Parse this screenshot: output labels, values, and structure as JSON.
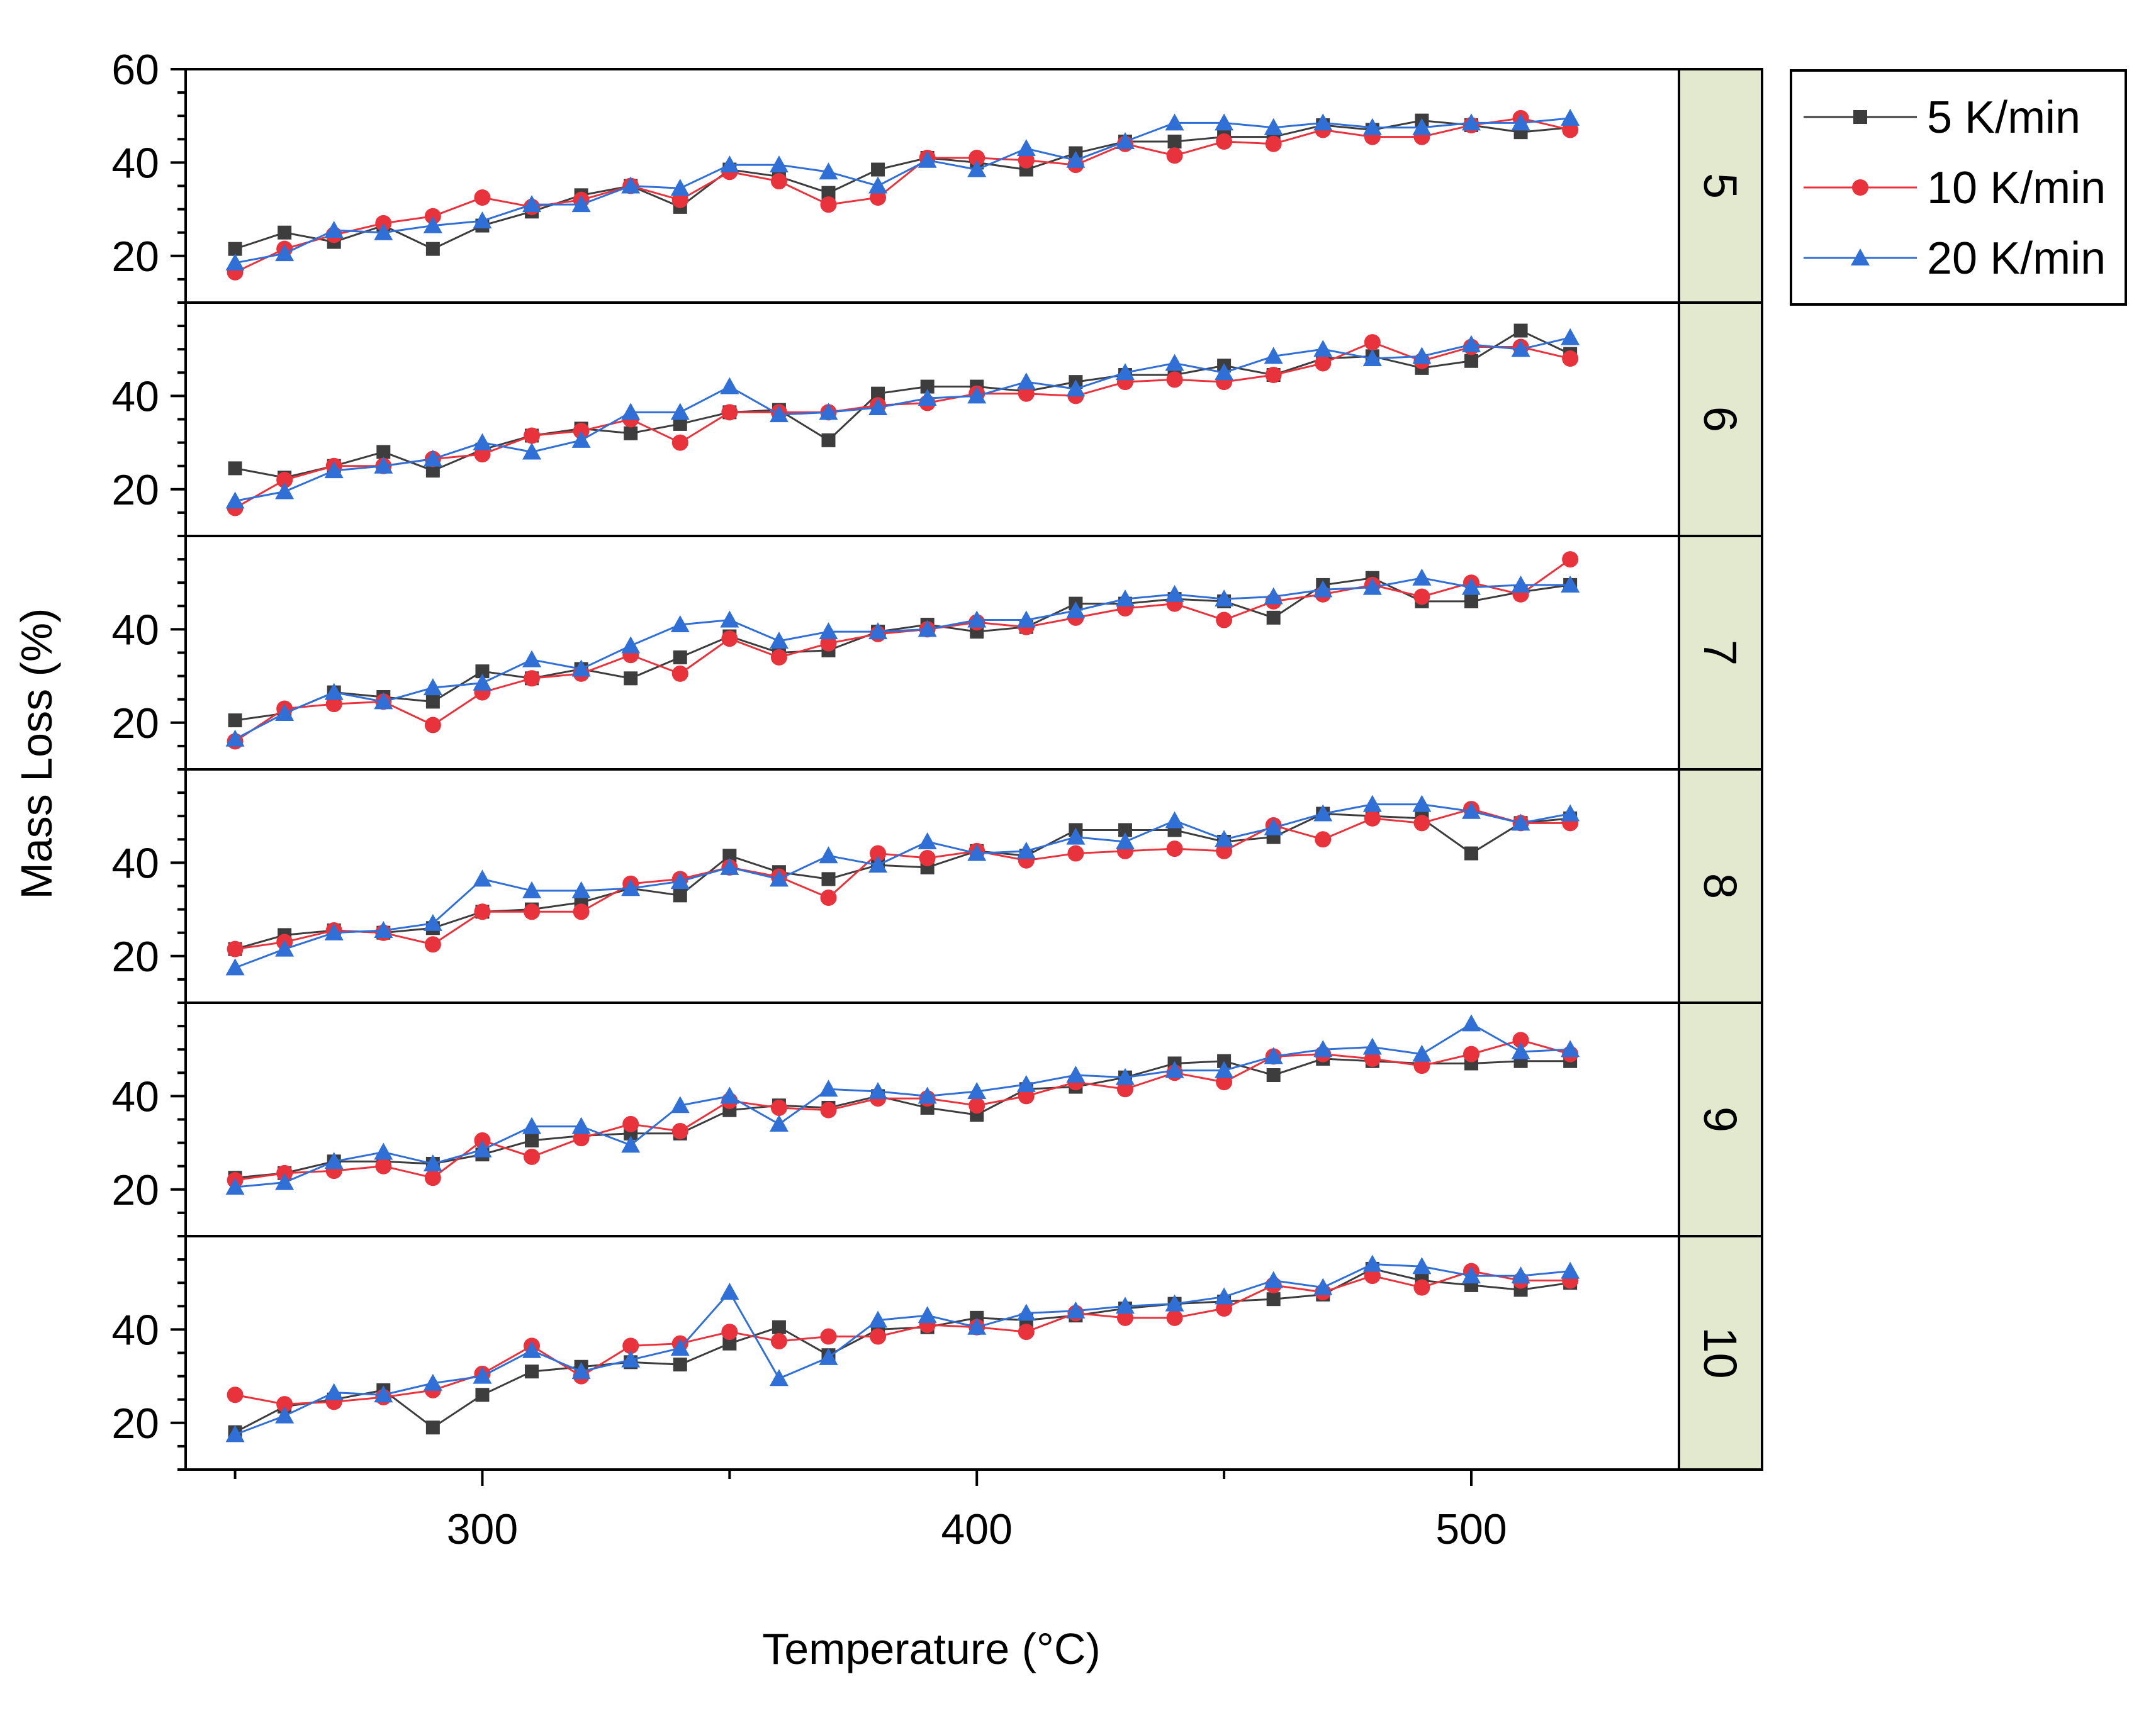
{
  "colors": {
    "series_5": "#3d3d3d",
    "series_10": "#e8333d",
    "series_20": "#2f6fd6",
    "strip_fill": "#e2e9cf",
    "axis": "#000000"
  },
  "chart_data": {
    "type": "line",
    "layout": "stacked panels sharing x-axis",
    "xlabel": "Temperature (°C)",
    "ylabel": "Mass Loss (%)",
    "x_ticks": [
      300,
      400,
      500
    ],
    "x_range": [
      240,
      542
    ],
    "y_range": [
      10,
      60
    ],
    "y_ticks_first_panel": [
      20,
      40,
      60
    ],
    "y_ticks_other_panels": [
      20,
      40
    ],
    "legend": [
      {
        "label": "5 K/min",
        "marker": "square"
      },
      {
        "label": "10 K/min",
        "marker": "circle"
      },
      {
        "label": "20 K/min",
        "marker": "triangle"
      }
    ],
    "x": [
      250,
      260,
      270,
      280,
      290,
      300,
      310,
      320,
      330,
      340,
      350,
      360,
      370,
      380,
      390,
      400,
      410,
      420,
      430,
      440,
      450,
      460,
      470,
      480,
      490,
      500,
      510,
      520
    ],
    "panels": [
      {
        "label": "5",
        "series": [
          {
            "name": "5 K/min",
            "values": [
              21.5,
              25,
              23,
              26.5,
              21.5,
              26.5,
              29.5,
              33,
              35,
              30.5,
              38.5,
              37,
              33.5,
              38.5,
              41,
              40,
              38.5,
              42,
              44.5,
              44.5,
              45.5,
              45.5,
              48,
              47,
              49,
              48,
              46.5,
              47.5
            ]
          },
          {
            "name": "10 K/min",
            "values": [
              16.5,
              21.5,
              24.5,
              27,
              28.5,
              32.5,
              30.5,
              32,
              35,
              32,
              38,
              36,
              31,
              32.5,
              41,
              41,
              40.5,
              39.5,
              44,
              41.5,
              44.5,
              44,
              47,
              45.5,
              45.5,
              48,
              49.5,
              47
            ]
          },
          {
            "name": "20 K/min",
            "values": [
              18.5,
              20.5,
              25.5,
              25,
              26.5,
              27.5,
              31,
              31,
              35,
              34.5,
              39.5,
              39.5,
              38,
              35,
              40.5,
              38.5,
              43,
              40.5,
              44.5,
              48.5,
              48.5,
              47.5,
              48.5,
              47.5,
              47.5,
              48.5,
              48.5,
              49.5
            ]
          }
        ]
      },
      {
        "label": "6",
        "series": [
          {
            "name": "5 K/min",
            "values": [
              24.5,
              22.5,
              25,
              28,
              24,
              28.5,
              31.5,
              33,
              32,
              34,
              36.5,
              37,
              30.5,
              40.5,
              42,
              42,
              41,
              43,
              44.5,
              44.5,
              46.5,
              44.5,
              48,
              48.5,
              46,
              47.5,
              54,
              49
            ]
          },
          {
            "name": "10 K/min",
            "values": [
              16,
              22,
              25,
              25,
              26.5,
              27.5,
              31.5,
              32.5,
              35,
              30,
              36.5,
              36.5,
              36.5,
              38,
              38.5,
              40.5,
              40.5,
              40,
              43,
              43.5,
              43,
              44.5,
              47,
              51.5,
              47.5,
              50.5,
              50.5,
              48
            ]
          },
          {
            "name": "20 K/min",
            "values": [
              17.5,
              19.5,
              24,
              25,
              26.5,
              30,
              28,
              30.5,
              36.5,
              36.5,
              42,
              36,
              36.5,
              37.5,
              39.5,
              40,
              43,
              41.5,
              45,
              47,
              45,
              48.5,
              50,
              48,
              48.5,
              51,
              50,
              52.5
            ]
          }
        ]
      },
      {
        "label": "7",
        "series": [
          {
            "name": "5 K/min",
            "values": [
              20.5,
              22,
              26.5,
              25.5,
              24.5,
              31,
              29.5,
              31.5,
              29.5,
              34,
              38.5,
              35,
              35.5,
              39.5,
              41,
              39.5,
              40.5,
              45.5,
              45.5,
              46.5,
              46,
              42.5,
              49.5,
              51,
              46,
              46,
              48,
              49.5
            ]
          },
          {
            "name": "10 K/min",
            "values": [
              16,
              23,
              24,
              24.5,
              19.5,
              26.5,
              29.5,
              30.5,
              34.5,
              30.5,
              38,
              34,
              37,
              39,
              40,
              41.5,
              40.5,
              42.5,
              44.5,
              45.5,
              42,
              46,
              47.5,
              49.5,
              47,
              50,
              47.5,
              55
            ]
          },
          {
            "name": "20 K/min",
            "values": [
              16.5,
              22,
              26.5,
              24.5,
              27.5,
              28.5,
              33.5,
              31.5,
              36.5,
              41,
              42,
              37.5,
              39.5,
              39.5,
              40,
              42,
              42,
              44,
              46.5,
              47.5,
              46.5,
              47,
              48.5,
              49,
              51,
              49,
              49.5,
              49.5
            ]
          }
        ]
      },
      {
        "label": "8",
        "series": [
          {
            "name": "5 K/min",
            "values": [
              21.5,
              24.5,
              25.5,
              25,
              26,
              29.5,
              30,
              31.5,
              34.5,
              33,
              41.5,
              38,
              36.5,
              39.5,
              39,
              42.5,
              41.5,
              47,
              47,
              47,
              44.5,
              45.5,
              50.5,
              50,
              49.5,
              42,
              48.5,
              49.5
            ]
          },
          {
            "name": "10 K/min",
            "values": [
              21.5,
              23,
              25.5,
              25,
              22.5,
              29.5,
              29.5,
              29.5,
              35.5,
              36.5,
              39,
              37,
              32.5,
              42,
              41,
              42.5,
              40.5,
              42,
              42.5,
              43,
              42.5,
              48,
              45,
              49.5,
              48.5,
              51.5,
              48.5,
              48.5
            ]
          },
          {
            "name": "20 K/min",
            "values": [
              17.5,
              21.5,
              25,
              25.5,
              27,
              36.5,
              34,
              34,
              34.5,
              36,
              39,
              36.5,
              41.5,
              39.5,
              44.5,
              42,
              42.5,
              45.5,
              44.5,
              49,
              45,
              47.5,
              50.5,
              52.5,
              52.5,
              51,
              48.5,
              50.5
            ]
          }
        ]
      },
      {
        "label": "9",
        "series": [
          {
            "name": "5 K/min",
            "values": [
              22.5,
              23.5,
              26,
              26,
              25.5,
              27.5,
              30.5,
              31.5,
              32,
              32,
              37,
              38,
              37.5,
              40,
              37.5,
              36,
              41.5,
              42,
              44,
              47,
              47.5,
              44.5,
              48,
              47.5,
              47,
              47,
              47.5,
              47.5
            ]
          },
          {
            "name": "10 K/min",
            "values": [
              22,
              23.5,
              24,
              25,
              22.5,
              30.5,
              27,
              31,
              34,
              32.5,
              39,
              37.5,
              37,
              39.5,
              39.5,
              38,
              40,
              43,
              41.5,
              45,
              43,
              48.5,
              49,
              48,
              46.5,
              49,
              52,
              49
            ]
          },
          {
            "name": "20 K/min",
            "values": [
              20.5,
              21.5,
              26,
              28,
              25.5,
              28.5,
              33.5,
              33.5,
              29.5,
              38,
              40,
              34,
              41.5,
              41,
              40,
              41,
              42.5,
              44.5,
              44,
              45.5,
              45.5,
              48.5,
              50,
              50.5,
              49,
              55.5,
              49.5,
              50
            ]
          }
        ]
      },
      {
        "label": "10",
        "series": [
          {
            "name": "5 K/min",
            "values": [
              18,
              23.5,
              25,
              27,
              19,
              26,
              31,
              32,
              33,
              32.5,
              37,
              40.5,
              34.5,
              40,
              40.5,
              42.5,
              42,
              43,
              44.5,
              45.5,
              46,
              46.5,
              47.5,
              53,
              50.5,
              49.5,
              48.5,
              50
            ]
          },
          {
            "name": "10 K/min",
            "values": [
              26,
              24,
              24.5,
              25.5,
              27,
              30.5,
              36.5,
              30,
              36.5,
              37,
              39.5,
              37.5,
              38.5,
              38.5,
              41,
              40.5,
              39.5,
              43.5,
              42.5,
              42.5,
              44.5,
              49.5,
              48,
              51.5,
              49,
              52.5,
              50.5,
              50.5
            ]
          },
          {
            "name": "20 K/min",
            "values": [
              17.5,
              21.5,
              26.5,
              26,
              28.5,
              30,
              35.5,
              31,
              33.5,
              36,
              48,
              29.5,
              34,
              42,
              43,
              40.5,
              43.5,
              44,
              45,
              45.5,
              47,
              50.5,
              49,
              54,
              53.5,
              51.5,
              51.5,
              52.5
            ]
          }
        ]
      }
    ]
  }
}
